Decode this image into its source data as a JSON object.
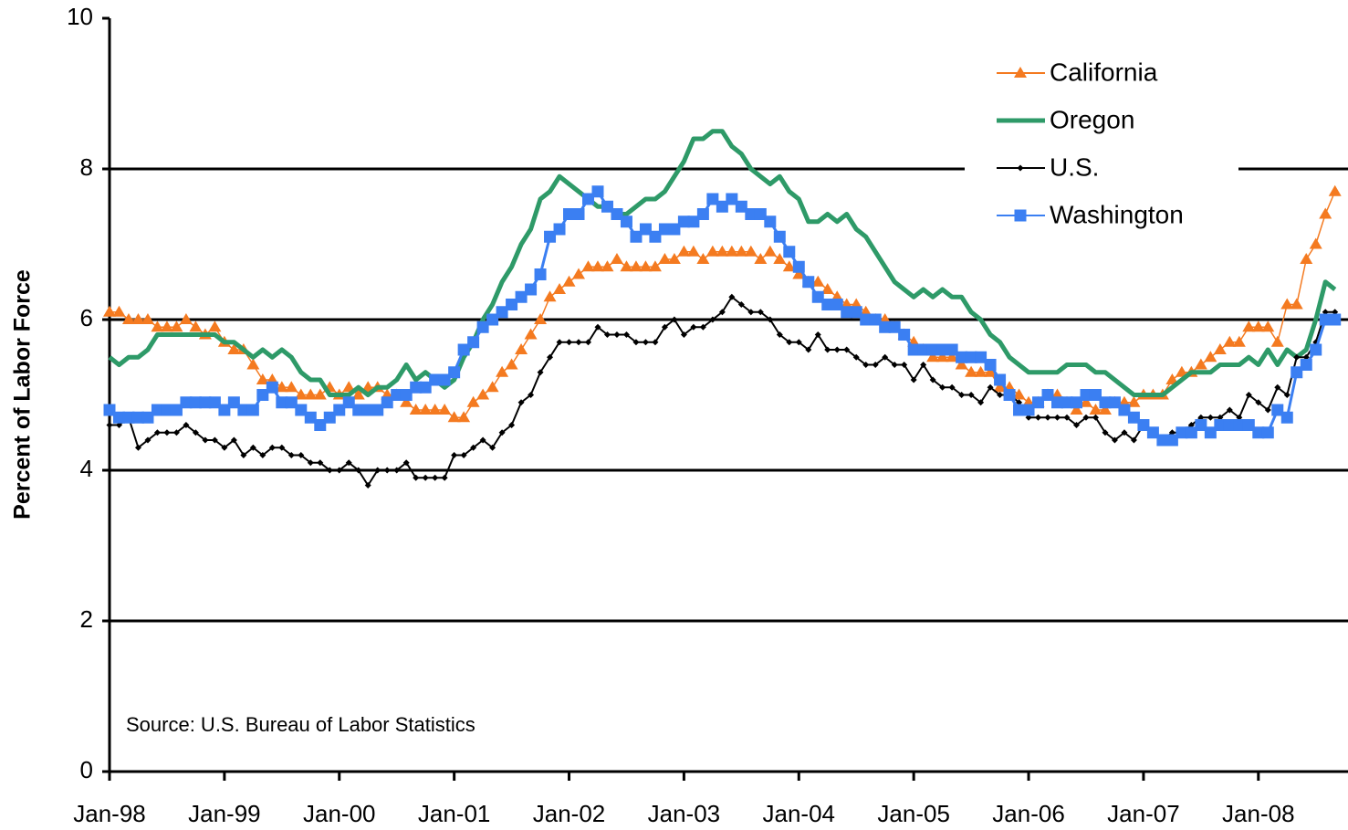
{
  "chart_data": {
    "type": "line",
    "y_label": "Percent of Labor Force",
    "annotation": "Source: U.S. Bureau of Labor Statistics",
    "categories": [
      "Jan-98",
      null,
      null,
      null,
      null,
      null,
      null,
      null,
      null,
      null,
      null,
      null,
      "Jan-99",
      null,
      null,
      null,
      null,
      null,
      null,
      null,
      null,
      null,
      null,
      null,
      "Jan-00",
      null,
      null,
      null,
      null,
      null,
      null,
      null,
      null,
      null,
      null,
      null,
      "Jan-01",
      null,
      null,
      null,
      null,
      null,
      null,
      null,
      null,
      null,
      null,
      null,
      "Jan-02",
      null,
      null,
      null,
      null,
      null,
      null,
      null,
      null,
      null,
      null,
      null,
      "Jan-03",
      null,
      null,
      null,
      null,
      null,
      null,
      null,
      null,
      null,
      null,
      null,
      "Jan-04",
      null,
      null,
      null,
      null,
      null,
      null,
      null,
      null,
      null,
      null,
      null,
      "Jan-05",
      null,
      null,
      null,
      null,
      null,
      null,
      null,
      null,
      null,
      null,
      null,
      "Jan-06",
      null,
      null,
      null,
      null,
      null,
      null,
      null,
      null,
      null,
      null,
      null,
      "Jan-07",
      null,
      null,
      null,
      null,
      null,
      null,
      null,
      null,
      null,
      null,
      null,
      "Jan-08",
      null,
      null,
      null,
      null,
      null,
      null,
      null,
      null
    ],
    "series": [
      {
        "name": "California",
        "color": "#f47a20",
        "marker": "triangle",
        "values": [
          6.1,
          6.1,
          6.0,
          6.0,
          6.0,
          5.9,
          5.9,
          5.9,
          6.0,
          5.9,
          5.8,
          5.9,
          5.7,
          5.6,
          5.6,
          5.4,
          5.2,
          5.2,
          5.1,
          5.1,
          5.0,
          5.0,
          5.0,
          5.1,
          5.0,
          5.1,
          5.0,
          5.1,
          5.1,
          5.0,
          5.0,
          4.9,
          4.8,
          4.8,
          4.8,
          4.8,
          4.7,
          4.7,
          4.9,
          5.0,
          5.1,
          5.3,
          5.4,
          5.6,
          5.8,
          6.0,
          6.3,
          6.4,
          6.5,
          6.6,
          6.7,
          6.7,
          6.7,
          6.8,
          6.7,
          6.7,
          6.7,
          6.7,
          6.8,
          6.8,
          6.9,
          6.9,
          6.8,
          6.9,
          6.9,
          6.9,
          6.9,
          6.9,
          6.8,
          6.9,
          6.8,
          6.7,
          6.6,
          6.5,
          6.5,
          6.4,
          6.3,
          6.2,
          6.2,
          6.1,
          6.0,
          6.0,
          5.9,
          5.8,
          5.7,
          5.6,
          5.5,
          5.5,
          5.5,
          5.4,
          5.3,
          5.3,
          5.3,
          5.1,
          5.1,
          5.0,
          4.9,
          4.9,
          5.0,
          5.0,
          4.9,
          4.8,
          4.9,
          4.8,
          4.8,
          4.9,
          4.9,
          4.9,
          5.0,
          5.0,
          5.0,
          5.2,
          5.3,
          5.3,
          5.4,
          5.5,
          5.6,
          5.7,
          5.7,
          5.9,
          5.9,
          5.9,
          5.7,
          6.2,
          6.2,
          6.8,
          7.0,
          7.4,
          7.7
        ]
      },
      {
        "name": "Oregon",
        "color": "#2e9a68",
        "marker": "none",
        "values": [
          5.5,
          5.4,
          5.5,
          5.5,
          5.6,
          5.8,
          5.8,
          5.8,
          5.8,
          5.8,
          5.8,
          5.8,
          5.7,
          5.7,
          5.6,
          5.5,
          5.6,
          5.5,
          5.6,
          5.5,
          5.3,
          5.2,
          5.2,
          5.0,
          5.0,
          5.0,
          5.1,
          5.0,
          5.1,
          5.1,
          5.2,
          5.4,
          5.2,
          5.3,
          5.2,
          5.1,
          5.2,
          5.5,
          5.7,
          6.0,
          6.2,
          6.5,
          6.7,
          7.0,
          7.2,
          7.6,
          7.7,
          7.9,
          7.8,
          7.7,
          7.6,
          7.5,
          7.5,
          7.4,
          7.4,
          7.5,
          7.6,
          7.6,
          7.7,
          7.9,
          8.1,
          8.4,
          8.4,
          8.5,
          8.5,
          8.3,
          8.2,
          8.0,
          7.9,
          7.8,
          7.9,
          7.7,
          7.6,
          7.3,
          7.3,
          7.4,
          7.3,
          7.4,
          7.2,
          7.1,
          6.9,
          6.7,
          6.5,
          6.4,
          6.3,
          6.4,
          6.3,
          6.4,
          6.3,
          6.3,
          6.1,
          6.0,
          5.8,
          5.7,
          5.5,
          5.4,
          5.3,
          5.3,
          5.3,
          5.3,
          5.4,
          5.4,
          5.4,
          5.3,
          5.3,
          5.2,
          5.1,
          5.0,
          5.0,
          5.0,
          5.0,
          5.1,
          5.2,
          5.3,
          5.3,
          5.3,
          5.4,
          5.4,
          5.4,
          5.5,
          5.4,
          5.6,
          5.4,
          5.6,
          5.5,
          5.6,
          6.0,
          6.5,
          6.4
        ]
      },
      {
        "name": "U.S.",
        "color": "#000000",
        "marker": "diamond",
        "values": [
          4.6,
          4.6,
          4.7,
          4.3,
          4.4,
          4.5,
          4.5,
          4.5,
          4.6,
          4.5,
          4.4,
          4.4,
          4.3,
          4.4,
          4.2,
          4.3,
          4.2,
          4.3,
          4.3,
          4.2,
          4.2,
          4.1,
          4.1,
          4.0,
          4.0,
          4.1,
          4.0,
          3.8,
          4.0,
          4.0,
          4.0,
          4.1,
          3.9,
          3.9,
          3.9,
          3.9,
          4.2,
          4.2,
          4.3,
          4.4,
          4.3,
          4.5,
          4.6,
          4.9,
          5.0,
          5.3,
          5.5,
          5.7,
          5.7,
          5.7,
          5.7,
          5.9,
          5.8,
          5.8,
          5.8,
          5.7,
          5.7,
          5.7,
          5.9,
          6.0,
          5.8,
          5.9,
          5.9,
          6.0,
          6.1,
          6.3,
          6.2,
          6.1,
          6.1,
          6.0,
          5.8,
          5.7,
          5.7,
          5.6,
          5.8,
          5.6,
          5.6,
          5.6,
          5.5,
          5.4,
          5.4,
          5.5,
          5.4,
          5.4,
          5.2,
          5.4,
          5.2,
          5.1,
          5.1,
          5.0,
          5.0,
          4.9,
          5.1,
          5.0,
          5.0,
          4.9,
          4.7,
          4.7,
          4.7,
          4.7,
          4.7,
          4.6,
          4.7,
          4.7,
          4.5,
          4.4,
          4.5,
          4.4,
          4.6,
          4.5,
          4.4,
          4.5,
          4.5,
          4.6,
          4.7,
          4.7,
          4.7,
          4.8,
          4.7,
          5.0,
          4.9,
          4.8,
          5.1,
          5.0,
          5.5,
          5.5,
          5.7,
          6.1,
          6.1
        ]
      },
      {
        "name": "Washington",
        "color": "#3b7ff2",
        "marker": "square",
        "values": [
          4.8,
          4.7,
          4.7,
          4.7,
          4.7,
          4.8,
          4.8,
          4.8,
          4.9,
          4.9,
          4.9,
          4.9,
          4.8,
          4.9,
          4.8,
          4.8,
          5.0,
          5.1,
          4.9,
          4.9,
          4.8,
          4.7,
          4.6,
          4.7,
          4.8,
          4.9,
          4.8,
          4.8,
          4.8,
          4.9,
          5.0,
          5.0,
          5.1,
          5.1,
          5.2,
          5.2,
          5.3,
          5.6,
          5.7,
          5.9,
          6.0,
          6.1,
          6.2,
          6.3,
          6.4,
          6.6,
          7.1,
          7.2,
          7.4,
          7.4,
          7.6,
          7.7,
          7.5,
          7.4,
          7.3,
          7.1,
          7.2,
          7.1,
          7.2,
          7.2,
          7.3,
          7.3,
          7.4,
          7.6,
          7.5,
          7.6,
          7.5,
          7.4,
          7.4,
          7.3,
          7.1,
          6.9,
          6.7,
          6.5,
          6.3,
          6.2,
          6.2,
          6.1,
          6.1,
          6.0,
          6.0,
          5.9,
          5.9,
          5.8,
          5.6,
          5.6,
          5.6,
          5.6,
          5.6,
          5.5,
          5.5,
          5.5,
          5.4,
          5.2,
          5.0,
          4.8,
          4.8,
          4.9,
          5.0,
          4.9,
          4.9,
          4.9,
          5.0,
          5.0,
          4.9,
          4.9,
          4.8,
          4.7,
          4.6,
          4.5,
          4.4,
          4.4,
          4.5,
          4.5,
          4.6,
          4.5,
          4.6,
          4.6,
          4.6,
          4.6,
          4.5,
          4.5,
          4.8,
          4.7,
          5.3,
          5.4,
          5.6,
          6.0,
          6.0
        ]
      }
    ],
    "ylim": [
      0,
      10
    ],
    "yticks": [
      0,
      2,
      4,
      6,
      8,
      10
    ],
    "grid": true,
    "legend": "top-right"
  }
}
